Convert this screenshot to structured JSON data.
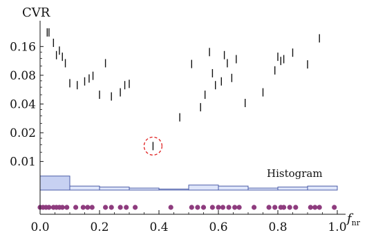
{
  "chart_data": {
    "type": "scatter",
    "title": "",
    "ylabel": "CVR",
    "xlabel_main": "f",
    "xlabel_sub": "nr",
    "x_scale": "linear",
    "y_scale": "log",
    "xlim": [
      0.0,
      1.0
    ],
    "ylim": [
      0.007,
      0.24
    ],
    "x_ticks": [
      0.0,
      0.2,
      0.4,
      0.6,
      0.8,
      1.0
    ],
    "x_tick_labels": [
      "0.0",
      "0.2",
      "0.4",
      "0.6",
      "0.8",
      "1.0"
    ],
    "y_ticks": [
      0.01,
      0.02,
      0.04,
      0.08,
      0.16
    ],
    "y_tick_labels": [
      "0.01",
      "0.02",
      "0.04",
      "0.08",
      "0.16"
    ],
    "grid": false,
    "legend": "none",
    "points": [
      {
        "x": 0.024,
        "y": 0.225
      },
      {
        "x": 0.03,
        "y": 0.225
      },
      {
        "x": 0.045,
        "y": 0.175
      },
      {
        "x": 0.055,
        "y": 0.13
      },
      {
        "x": 0.065,
        "y": 0.145
      },
      {
        "x": 0.075,
        "y": 0.125
      },
      {
        "x": 0.085,
        "y": 0.107
      },
      {
        "x": 0.1,
        "y": 0.066
      },
      {
        "x": 0.125,
        "y": 0.063
      },
      {
        "x": 0.15,
        "y": 0.069
      },
      {
        "x": 0.165,
        "y": 0.074
      },
      {
        "x": 0.178,
        "y": 0.079
      },
      {
        "x": 0.2,
        "y": 0.05
      },
      {
        "x": 0.22,
        "y": 0.107
      },
      {
        "x": 0.24,
        "y": 0.048
      },
      {
        "x": 0.27,
        "y": 0.053
      },
      {
        "x": 0.285,
        "y": 0.063
      },
      {
        "x": 0.3,
        "y": 0.065
      },
      {
        "x": 0.38,
        "y": 0.0145
      },
      {
        "x": 0.47,
        "y": 0.029
      },
      {
        "x": 0.51,
        "y": 0.105
      },
      {
        "x": 0.54,
        "y": 0.037
      },
      {
        "x": 0.555,
        "y": 0.05
      },
      {
        "x": 0.57,
        "y": 0.14
      },
      {
        "x": 0.58,
        "y": 0.084
      },
      {
        "x": 0.59,
        "y": 0.063
      },
      {
        "x": 0.61,
        "y": 0.069
      },
      {
        "x": 0.62,
        "y": 0.13
      },
      {
        "x": 0.63,
        "y": 0.107
      },
      {
        "x": 0.645,
        "y": 0.075
      },
      {
        "x": 0.66,
        "y": 0.118
      },
      {
        "x": 0.69,
        "y": 0.041
      },
      {
        "x": 0.75,
        "y": 0.053
      },
      {
        "x": 0.79,
        "y": 0.09
      },
      {
        "x": 0.8,
        "y": 0.125
      },
      {
        "x": 0.81,
        "y": 0.113
      },
      {
        "x": 0.82,
        "y": 0.118
      },
      {
        "x": 0.85,
        "y": 0.138
      },
      {
        "x": 0.9,
        "y": 0.104
      },
      {
        "x": 0.94,
        "y": 0.195
      }
    ],
    "highlight": {
      "x": 0.38,
      "y": 0.0145,
      "style": "dashed-red-circle"
    },
    "histogram": {
      "label": "Histogram",
      "bins": [
        0.0,
        0.1,
        0.2,
        0.3,
        0.4,
        0.5,
        0.6,
        0.7,
        0.8,
        0.9,
        1.0
      ],
      "counts": [
        7,
        2,
        1.5,
        1,
        0.5,
        2.5,
        2,
        1,
        1.5,
        2
      ],
      "fill_color": "#c7d1f2",
      "edge_color": "#4b5ca8",
      "highlight_fill": "#dfe6fa"
    },
    "rug": {
      "x": [
        0.0,
        0.01,
        0.02,
        0.03,
        0.045,
        0.055,
        0.065,
        0.075,
        0.09,
        0.12,
        0.145,
        0.16,
        0.175,
        0.22,
        0.24,
        0.27,
        0.29,
        0.32,
        0.44,
        0.51,
        0.53,
        0.55,
        0.58,
        0.6,
        0.615,
        0.635,
        0.655,
        0.67,
        0.72,
        0.77,
        0.79,
        0.81,
        0.82,
        0.84,
        0.86,
        0.91,
        0.925,
        0.94,
        0.99
      ],
      "color": "#8e3c7e"
    },
    "colors": {
      "marker": "#111111",
      "highlight_circle": "#e02020",
      "axis": "#111111"
    }
  }
}
